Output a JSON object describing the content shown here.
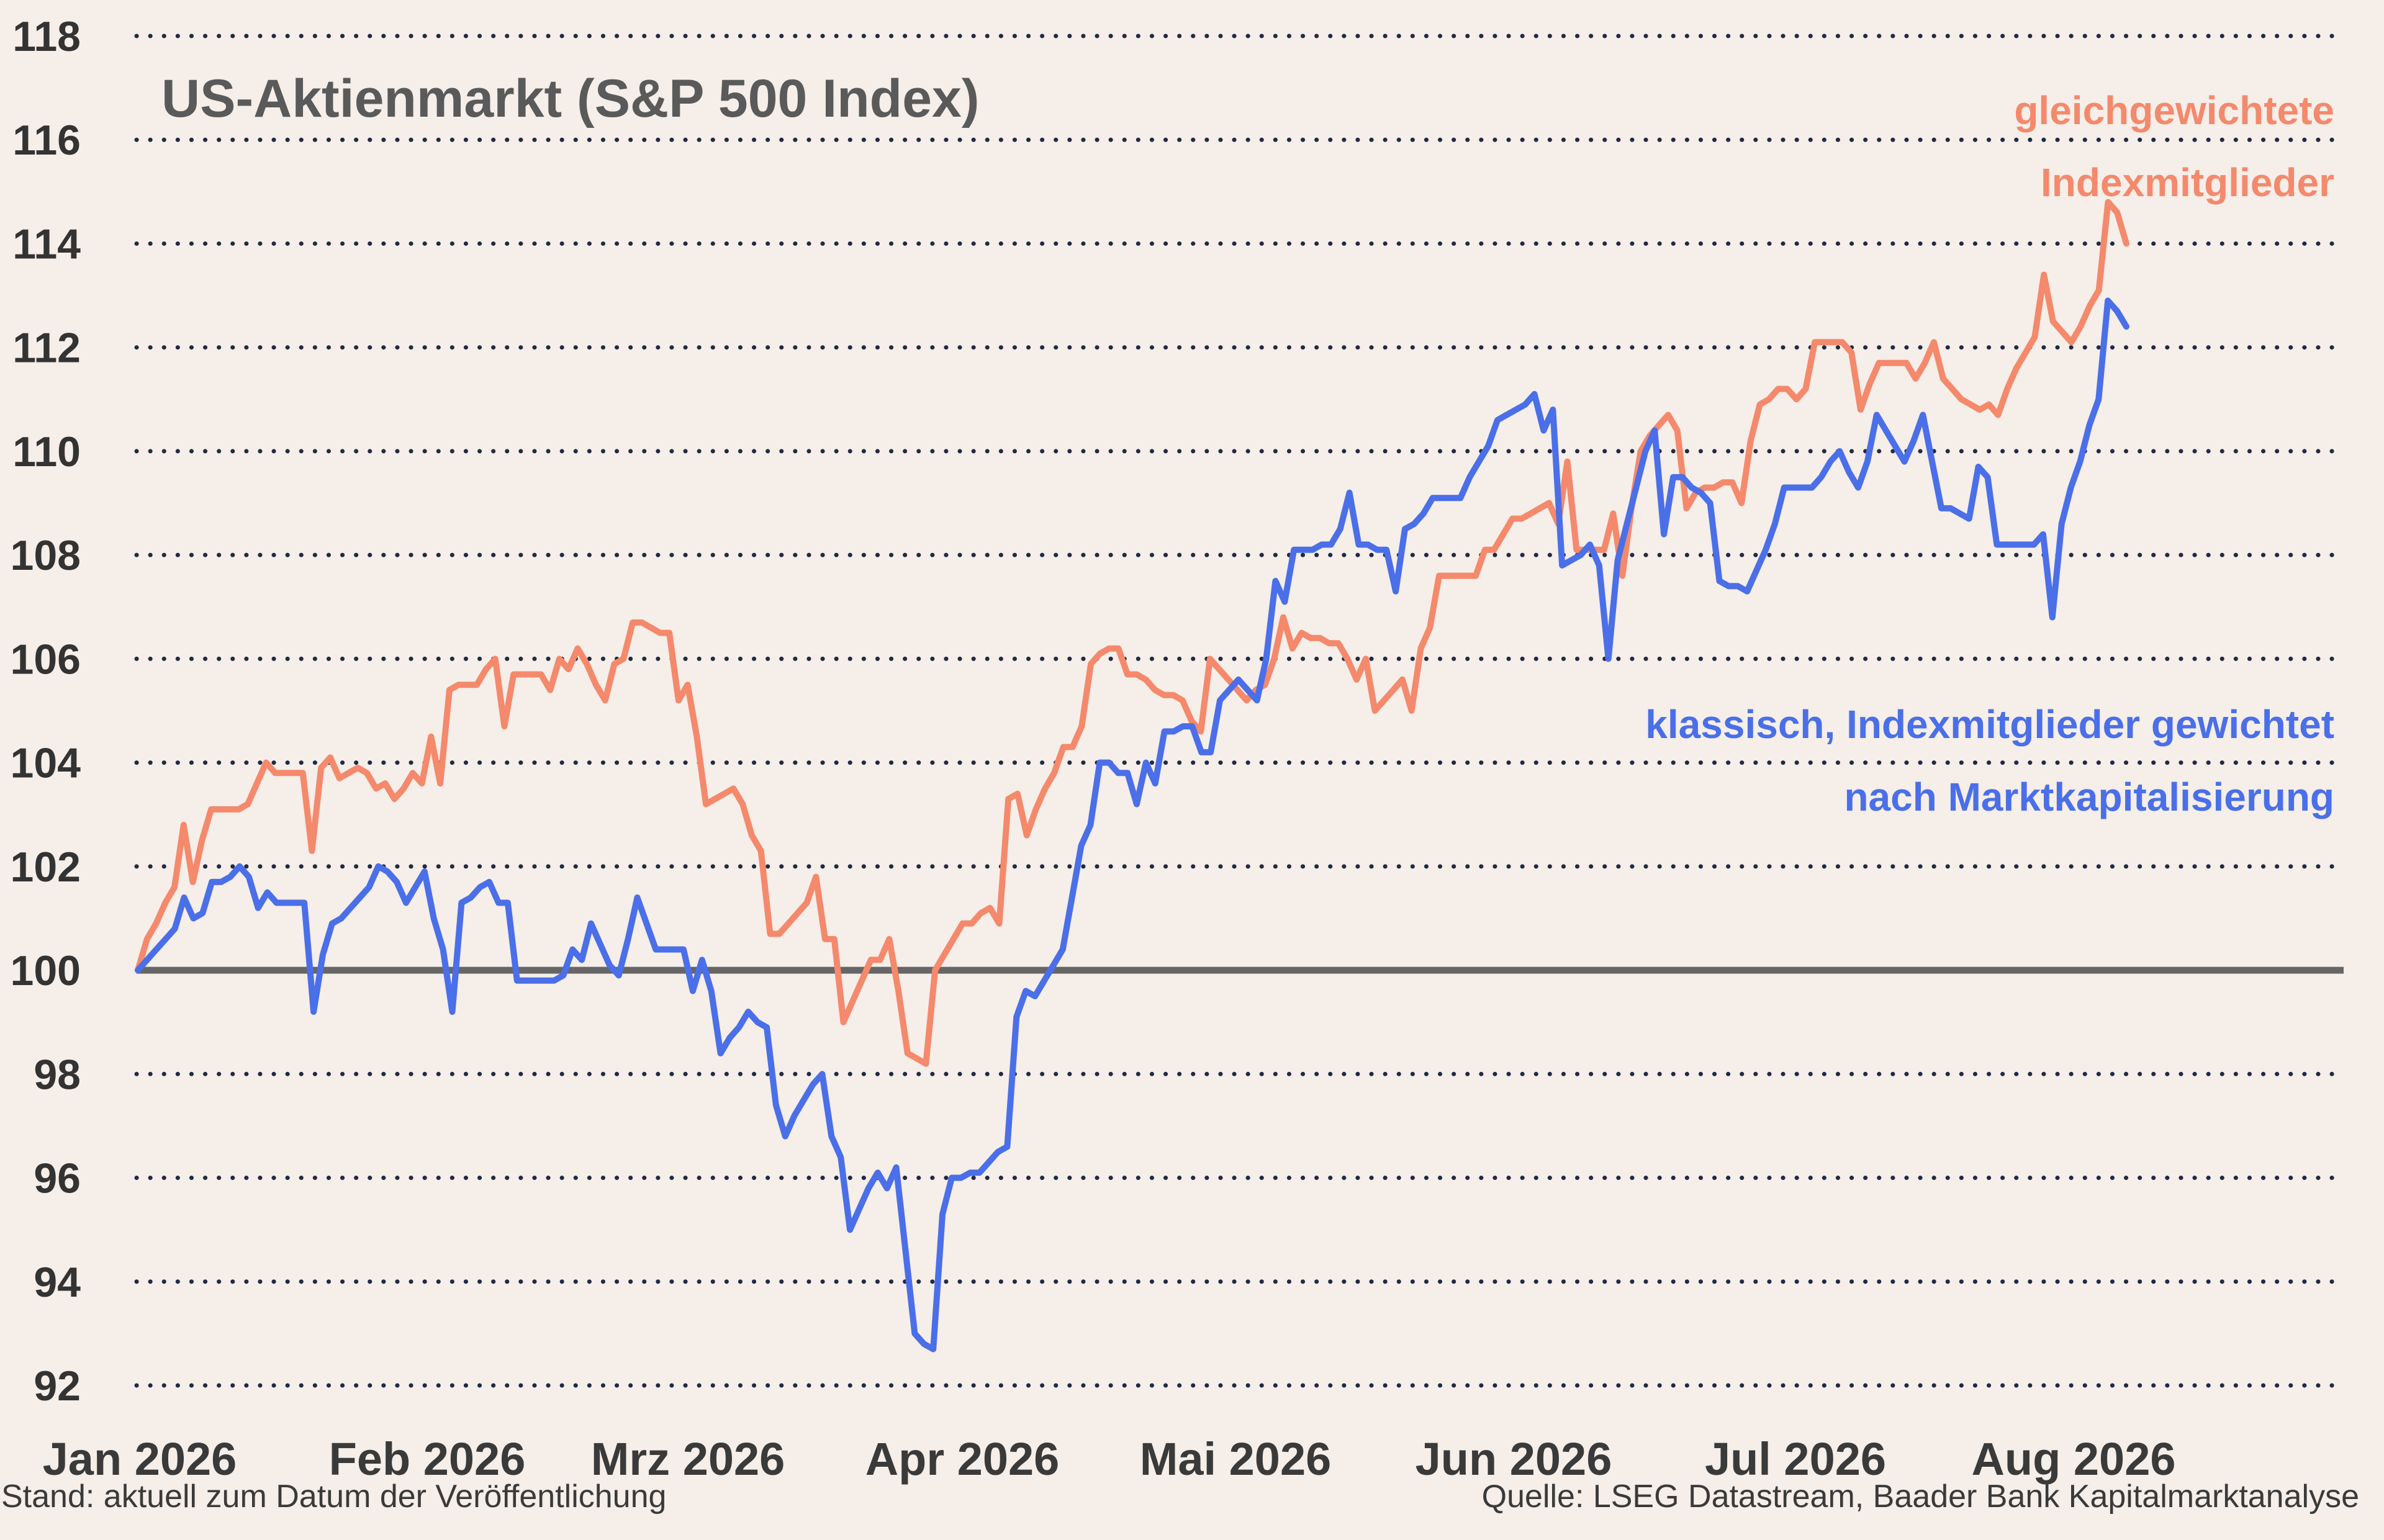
{
  "chart_data": {
    "type": "line",
    "title": "US-Aktienmarkt (S&P 500 Index)",
    "xlabel": "",
    "ylabel": "",
    "ylim": [
      92,
      118
    ],
    "yticks": [
      92,
      94,
      96,
      98,
      100,
      102,
      104,
      106,
      108,
      110,
      112,
      114,
      116,
      118
    ],
    "baseline": 100,
    "grid": true,
    "x_ticks": [
      "Jan 2026",
      "Feb 2026",
      "Mrz 2026",
      "Apr 2026",
      "Mai 2026",
      "Jun 2026",
      "Jul 2026",
      "Aug 2026"
    ],
    "series": [
      {
        "name": "gleichgewichtete Indexmitglieder",
        "label_lines": [
          "gleichgewichtete",
          "Indexmitglieder"
        ],
        "color": "#f4896c",
        "values": [
          100.0,
          100.6,
          100.9,
          101.3,
          101.6,
          102.8,
          101.7,
          102.5,
          103.1,
          103.1,
          103.1,
          103.1,
          103.2,
          103.6,
          104.0,
          103.8,
          103.8,
          103.8,
          103.8,
          102.3,
          103.9,
          104.1,
          103.7,
          103.8,
          103.9,
          103.8,
          103.5,
          103.6,
          103.3,
          103.5,
          103.8,
          103.6,
          104.5,
          103.6,
          105.4,
          105.5,
          105.5,
          105.5,
          105.8,
          106.0,
          104.7,
          105.7,
          105.7,
          105.7,
          105.7,
          105.4,
          106.0,
          105.8,
          106.2,
          105.9,
          105.5,
          105.2,
          105.9,
          106.0,
          106.7,
          106.7,
          106.6,
          106.5,
          106.5,
          105.2,
          105.5,
          104.5,
          103.2,
          103.3,
          103.4,
          103.5,
          103.2,
          102.6,
          102.3,
          100.7,
          100.7,
          100.9,
          101.1,
          101.3,
          101.8,
          100.6,
          100.6,
          99.0,
          99.4,
          99.8,
          100.2,
          100.2,
          100.6,
          99.6,
          98.4,
          98.3,
          98.2,
          100.0,
          100.3,
          100.6,
          100.9,
          100.9,
          101.1,
          101.2,
          100.9,
          103.3,
          103.4,
          102.6,
          103.1,
          103.5,
          103.8,
          104.3,
          104.3,
          104.7,
          105.9,
          106.1,
          106.2,
          106.2,
          105.7,
          105.7,
          105.6,
          105.4,
          105.3,
          105.3,
          105.2,
          104.8,
          104.6,
          106.0,
          105.8,
          105.6,
          105.4,
          105.2,
          105.4,
          105.5,
          106.0,
          106.8,
          106.2,
          106.5,
          106.4,
          106.4,
          106.3,
          106.3,
          106.0,
          105.6,
          106.0,
          105.0,
          105.2,
          105.4,
          105.6,
          105.0,
          106.2,
          106.6,
          107.6,
          107.6,
          107.6,
          107.6,
          107.6,
          108.1,
          108.1,
          108.4,
          108.7,
          108.7,
          108.8,
          108.9,
          109.0,
          108.6,
          109.8,
          108.1,
          108.1,
          108.1,
          108.1,
          108.8,
          107.6,
          108.9,
          110.0,
          110.3,
          110.5,
          110.7,
          110.4,
          108.9,
          109.2,
          109.3,
          109.3,
          109.4,
          109.4,
          109.0,
          110.2,
          110.9,
          111.0,
          111.2,
          111.2,
          111.0,
          111.2,
          112.1,
          112.1,
          112.1,
          112.1,
          111.9,
          110.8,
          111.3,
          111.7,
          111.7,
          111.7,
          111.7,
          111.4,
          111.7,
          112.1,
          111.4,
          111.2,
          111.0,
          110.9,
          110.8,
          110.9,
          110.7,
          111.2,
          111.6,
          111.9,
          112.2,
          113.4,
          112.5,
          112.3,
          112.1,
          112.4,
          112.8,
          113.1,
          114.8,
          114.6,
          114.0
        ]
      },
      {
        "name": "klassisch, Indexmitglieder gewichtet nach Marktkapitalisierung",
        "label_lines": [
          "klassisch, Indexmitglieder gewichtet",
          "nach Marktkapitalisierung"
        ],
        "color": "#4a6fe8",
        "values": [
          100.0,
          100.2,
          100.4,
          100.6,
          100.8,
          101.4,
          101.0,
          101.1,
          101.7,
          101.7,
          101.8,
          102.0,
          101.8,
          101.2,
          101.5,
          101.3,
          101.3,
          101.3,
          101.3,
          99.2,
          100.3,
          100.9,
          101.0,
          101.2,
          101.4,
          101.6,
          102.0,
          101.9,
          101.7,
          101.3,
          101.6,
          101.9,
          101.0,
          100.4,
          99.2,
          101.3,
          101.4,
          101.6,
          101.7,
          101.3,
          101.3,
          99.8,
          99.8,
          99.8,
          99.8,
          99.8,
          99.9,
          100.4,
          100.2,
          100.9,
          100.5,
          100.1,
          99.9,
          100.6,
          101.4,
          100.9,
          100.4,
          100.4,
          100.4,
          100.4,
          99.6,
          100.2,
          99.6,
          98.4,
          98.7,
          98.9,
          99.2,
          99.0,
          98.9,
          97.4,
          96.8,
          97.2,
          97.5,
          97.8,
          98.0,
          96.8,
          96.4,
          95.0,
          95.4,
          95.8,
          96.1,
          95.8,
          96.2,
          94.6,
          93.0,
          92.8,
          92.7,
          95.3,
          96.0,
          96.0,
          96.1,
          96.1,
          96.3,
          96.5,
          96.6,
          99.1,
          99.6,
          99.5,
          99.8,
          100.1,
          100.4,
          101.4,
          102.4,
          102.8,
          104.0,
          104.0,
          103.8,
          103.8,
          103.2,
          104.0,
          103.6,
          104.6,
          104.6,
          104.7,
          104.7,
          104.2,
          104.2,
          105.2,
          105.4,
          105.6,
          105.4,
          105.2,
          106.0,
          107.5,
          107.1,
          108.1,
          108.1,
          108.1,
          108.2,
          108.2,
          108.5,
          109.2,
          108.2,
          108.2,
          108.1,
          108.1,
          107.3,
          108.5,
          108.6,
          108.8,
          109.1,
          109.1,
          109.1,
          109.1,
          109.5,
          109.8,
          110.1,
          110.6,
          110.7,
          110.8,
          110.9,
          111.1,
          110.4,
          110.8,
          107.8,
          107.9,
          108.0,
          108.2,
          107.8,
          106.0,
          107.9,
          108.6,
          109.3,
          110.0,
          110.4,
          108.4,
          109.5,
          109.5,
          109.3,
          109.2,
          109.0,
          107.5,
          107.4,
          107.4,
          107.3,
          107.7,
          108.1,
          108.6,
          109.3,
          109.3,
          109.3,
          109.3,
          109.5,
          109.8,
          110.0,
          109.6,
          109.3,
          109.8,
          110.7,
          110.4,
          110.1,
          109.8,
          110.2,
          110.7,
          109.8,
          108.9,
          108.9,
          108.8,
          108.7,
          109.7,
          109.5,
          108.2,
          108.2,
          108.2,
          108.2,
          108.2,
          108.4,
          106.8,
          108.6,
          109.3,
          109.8,
          110.5,
          111.0,
          112.9,
          112.7,
          112.4
        ]
      }
    ]
  },
  "footer": {
    "left": "Stand: aktuell zum Datum der Veröffentlichung",
    "right": "Quelle: LSEG Datastream, Baader Bank Kapitalmarktanalyse"
  },
  "colors": {
    "background": "#f5eee9",
    "grid": "#1f2a44",
    "baseline": "#666666"
  }
}
